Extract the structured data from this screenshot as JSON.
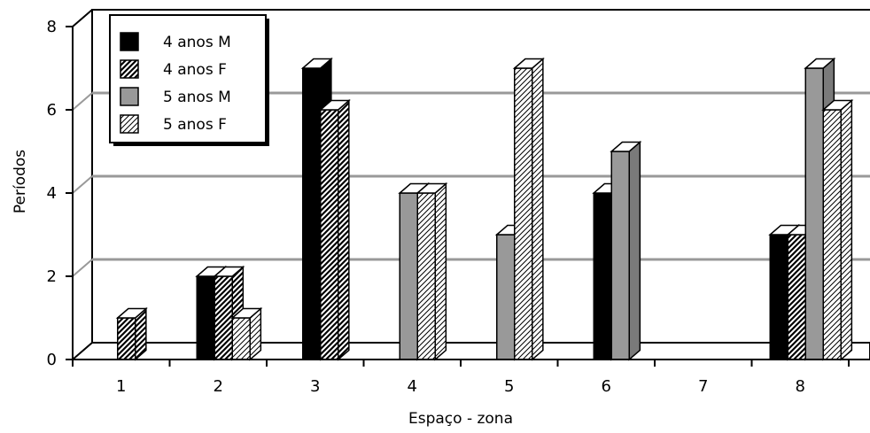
{
  "chart_data": {
    "type": "bar",
    "three_d": true,
    "categories": [
      "1",
      "2",
      "3",
      "4",
      "5",
      "6",
      "7",
      "8"
    ],
    "series": [
      {
        "name": "4 anos M",
        "values": [
          0,
          2,
          7,
          0,
          0,
          4,
          0,
          3
        ],
        "fill": "solid",
        "color": "#000000"
      },
      {
        "name": "4 anos F",
        "values": [
          1,
          2,
          6,
          0,
          0,
          0,
          0,
          3
        ],
        "fill": "hatch",
        "color": "#000000"
      },
      {
        "name": "5 anos M",
        "values": [
          0,
          0,
          0,
          4,
          3,
          5,
          0,
          7
        ],
        "fill": "solid",
        "color": "#999999"
      },
      {
        "name": "5 anos F",
        "values": [
          0,
          1,
          0,
          4,
          7,
          0,
          0,
          6
        ],
        "fill": "hatch",
        "color": "#ffffff"
      }
    ],
    "xlabel": "Espaço - zona",
    "ylabel": "Períodos",
    "ylim": [
      0,
      8
    ],
    "yticks": [
      "0",
      "2",
      "4",
      "6",
      "8"
    ],
    "grid": true,
    "legend_position": "top-left"
  }
}
